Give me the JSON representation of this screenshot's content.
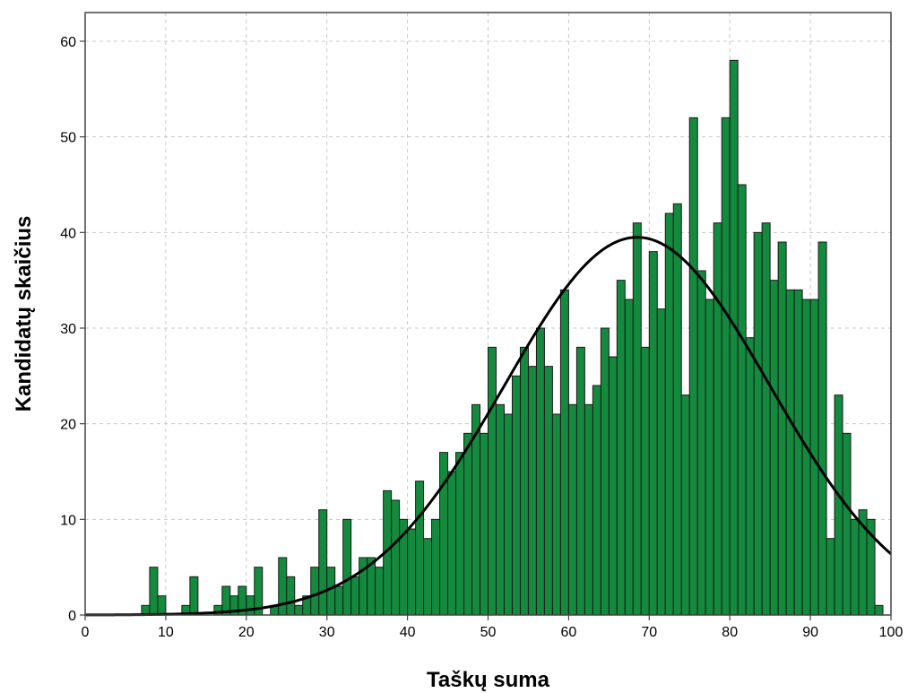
{
  "chart_data": {
    "type": "bar",
    "xlabel": "Taškų suma",
    "ylabel": "Kandidatų skaičius",
    "xlim": [
      0,
      100
    ],
    "ylim": [
      0,
      63
    ],
    "xticks": [
      0,
      10,
      20,
      30,
      40,
      50,
      60,
      70,
      80,
      90,
      100
    ],
    "yticks": [
      0,
      10,
      20,
      30,
      40,
      50,
      60
    ],
    "grid": true,
    "bar_color": "#138A3D",
    "bar_edge_color": "#1a1a1a",
    "curve_color": "#000000",
    "bin_width": 1,
    "bins": [
      {
        "x": 7,
        "count": 1
      },
      {
        "x": 8,
        "count": 5
      },
      {
        "x": 9,
        "count": 2
      },
      {
        "x": 12,
        "count": 1
      },
      {
        "x": 13,
        "count": 4
      },
      {
        "x": 16,
        "count": 1
      },
      {
        "x": 17,
        "count": 3
      },
      {
        "x": 18,
        "count": 2
      },
      {
        "x": 19,
        "count": 3
      },
      {
        "x": 20,
        "count": 2
      },
      {
        "x": 21,
        "count": 5
      },
      {
        "x": 23,
        "count": 1
      },
      {
        "x": 24,
        "count": 6
      },
      {
        "x": 25,
        "count": 4
      },
      {
        "x": 26,
        "count": 1
      },
      {
        "x": 27,
        "count": 2
      },
      {
        "x": 28,
        "count": 5
      },
      {
        "x": 29,
        "count": 11
      },
      {
        "x": 30,
        "count": 5
      },
      {
        "x": 31,
        "count": 3
      },
      {
        "x": 32,
        "count": 10
      },
      {
        "x": 33,
        "count": 4
      },
      {
        "x": 34,
        "count": 6
      },
      {
        "x": 35,
        "count": 6
      },
      {
        "x": 36,
        "count": 5
      },
      {
        "x": 37,
        "count": 13
      },
      {
        "x": 38,
        "count": 12
      },
      {
        "x": 39,
        "count": 10
      },
      {
        "x": 40,
        "count": 9
      },
      {
        "x": 41,
        "count": 14
      },
      {
        "x": 42,
        "count": 8
      },
      {
        "x": 43,
        "count": 10
      },
      {
        "x": 44,
        "count": 17
      },
      {
        "x": 45,
        "count": 15
      },
      {
        "x": 46,
        "count": 17
      },
      {
        "x": 47,
        "count": 19
      },
      {
        "x": 48,
        "count": 22
      },
      {
        "x": 49,
        "count": 19
      },
      {
        "x": 50,
        "count": 28
      },
      {
        "x": 51,
        "count": 22
      },
      {
        "x": 52,
        "count": 21
      },
      {
        "x": 53,
        "count": 25
      },
      {
        "x": 54,
        "count": 28
      },
      {
        "x": 55,
        "count": 26
      },
      {
        "x": 56,
        "count": 30
      },
      {
        "x": 57,
        "count": 26
      },
      {
        "x": 58,
        "count": 21
      },
      {
        "x": 59,
        "count": 34
      },
      {
        "x": 60,
        "count": 22
      },
      {
        "x": 61,
        "count": 28
      },
      {
        "x": 62,
        "count": 22
      },
      {
        "x": 63,
        "count": 24
      },
      {
        "x": 64,
        "count": 30
      },
      {
        "x": 65,
        "count": 27
      },
      {
        "x": 66,
        "count": 35
      },
      {
        "x": 67,
        "count": 33
      },
      {
        "x": 68,
        "count": 41
      },
      {
        "x": 69,
        "count": 28
      },
      {
        "x": 70,
        "count": 38
      },
      {
        "x": 71,
        "count": 32
      },
      {
        "x": 72,
        "count": 42
      },
      {
        "x": 73,
        "count": 43
      },
      {
        "x": 74,
        "count": 23
      },
      {
        "x": 75,
        "count": 52
      },
      {
        "x": 76,
        "count": 36
      },
      {
        "x": 77,
        "count": 33
      },
      {
        "x": 78,
        "count": 41
      },
      {
        "x": 79,
        "count": 52
      },
      {
        "x": 80,
        "count": 58
      },
      {
        "x": 81,
        "count": 45
      },
      {
        "x": 82,
        "count": 29
      },
      {
        "x": 83,
        "count": 40
      },
      {
        "x": 84,
        "count": 41
      },
      {
        "x": 85,
        "count": 35
      },
      {
        "x": 86,
        "count": 39
      },
      {
        "x": 87,
        "count": 34
      },
      {
        "x": 88,
        "count": 34
      },
      {
        "x": 89,
        "count": 33
      },
      {
        "x": 90,
        "count": 33
      },
      {
        "x": 91,
        "count": 39
      },
      {
        "x": 92,
        "count": 8
      },
      {
        "x": 93,
        "count": 23
      },
      {
        "x": 94,
        "count": 19
      },
      {
        "x": 95,
        "count": 10
      },
      {
        "x": 96,
        "count": 11
      },
      {
        "x": 97,
        "count": 10
      },
      {
        "x": 98,
        "count": 1
      }
    ],
    "normal_curve": {
      "mean": 68.5,
      "std": 16.5,
      "peak": 39.5
    }
  }
}
